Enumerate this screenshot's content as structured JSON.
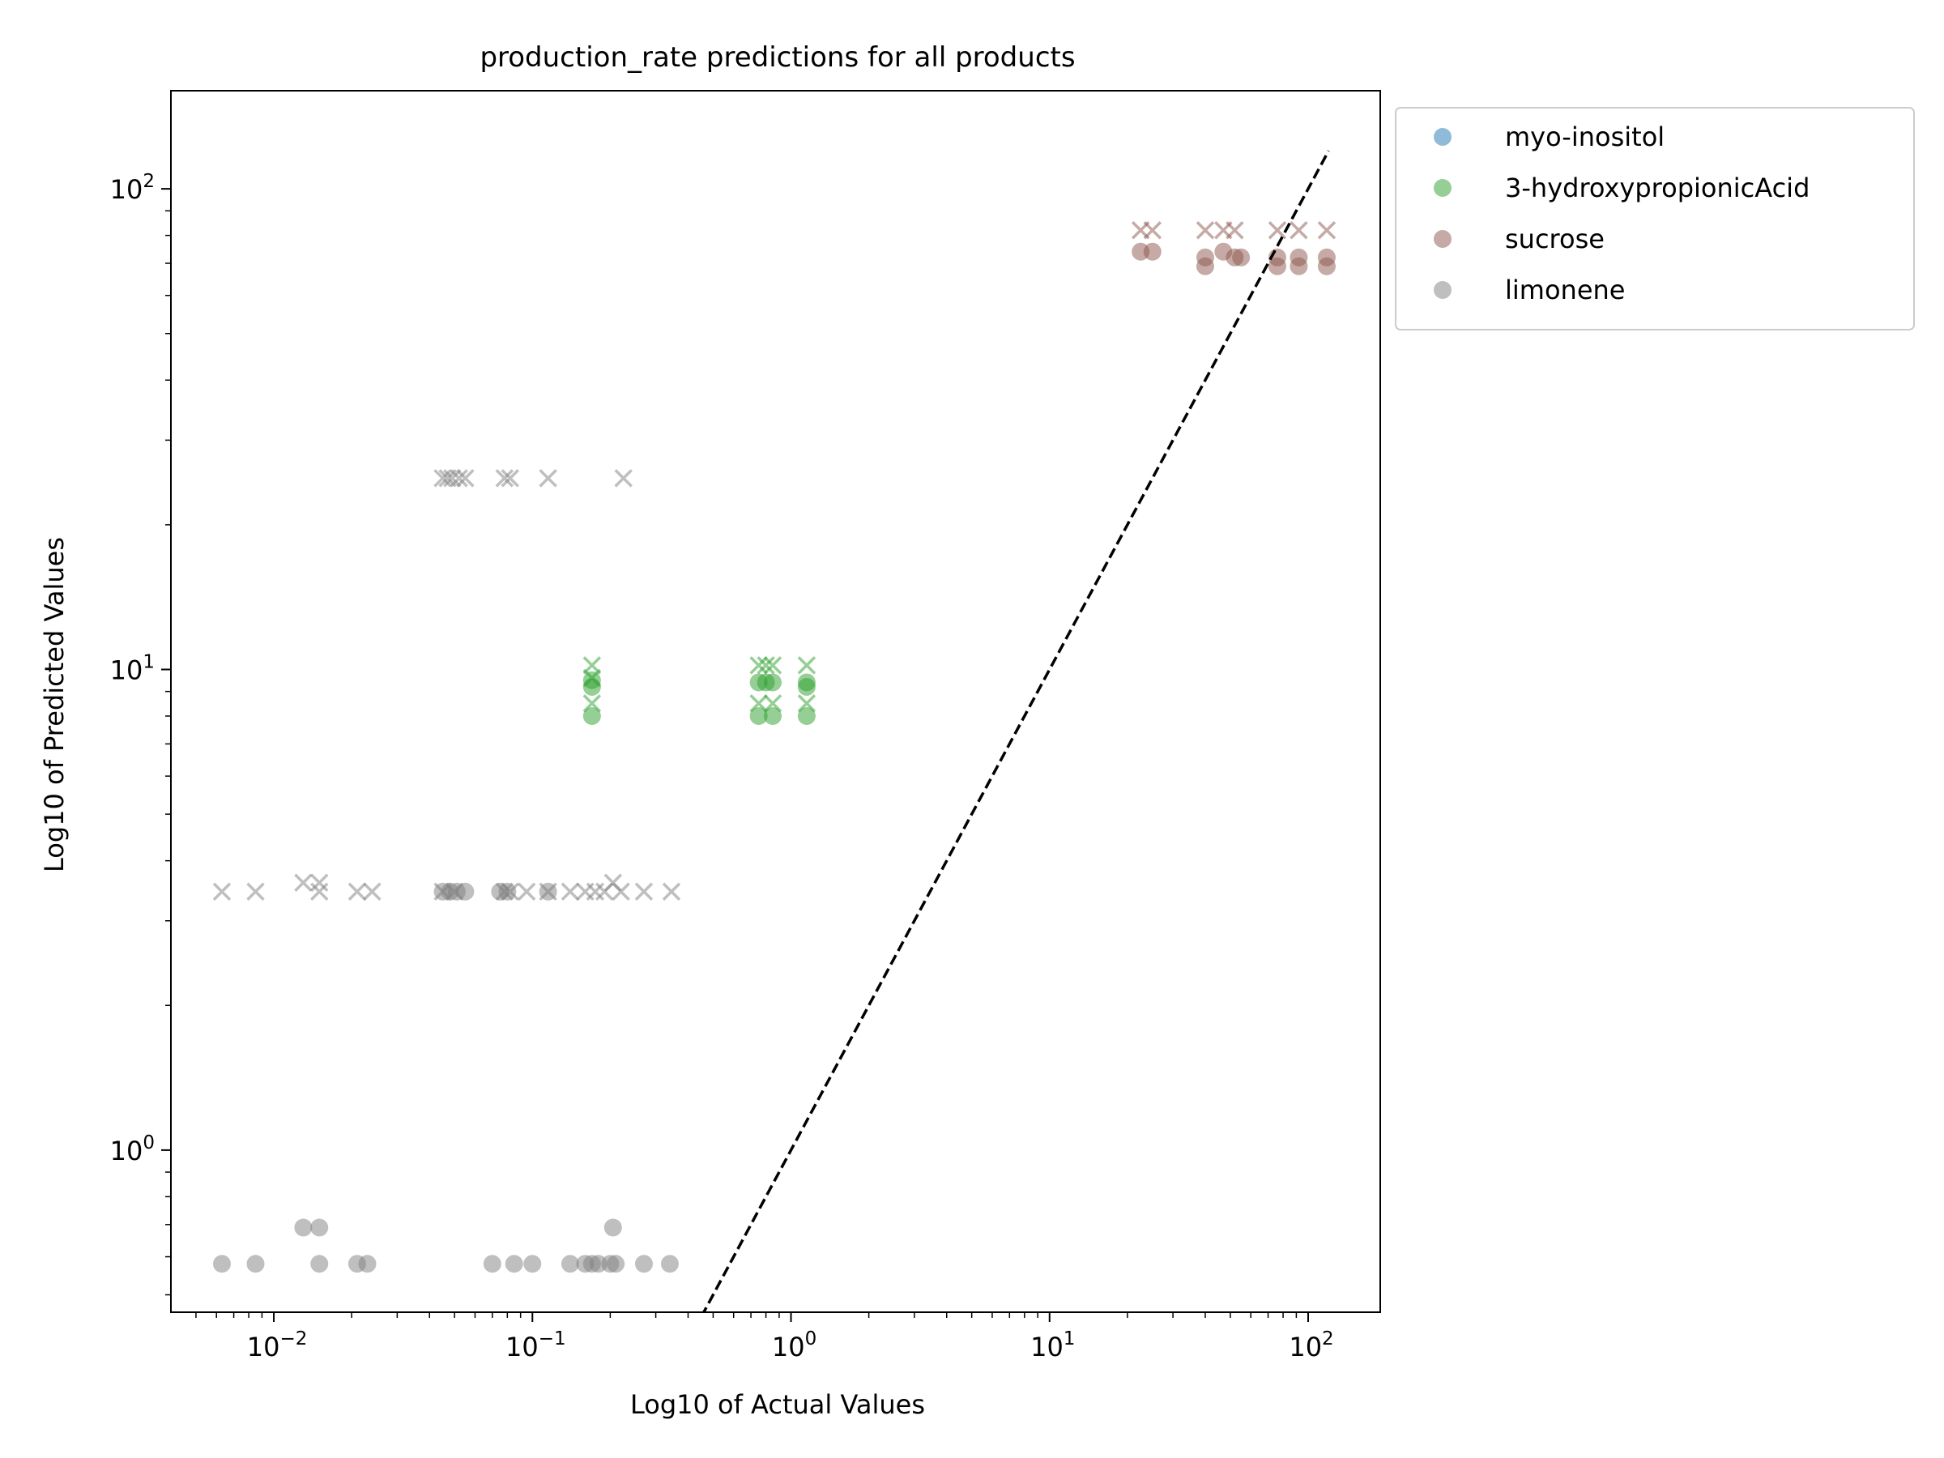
{
  "chart_data": {
    "type": "scatter",
    "title": "production_rate predictions for all products",
    "xlabel": "Log10 of Actual Values",
    "ylabel": "Log10 of Predicted Values",
    "xscale": "log",
    "yscale": "log",
    "xlim": [
      0.004,
      190
    ],
    "ylim": [
      0.46,
      160
    ],
    "grid": false,
    "legend_position": "outside-top-right",
    "x_ticks": [
      {
        "value": 0.01,
        "base": "10",
        "exp": "−2"
      },
      {
        "value": 0.1,
        "base": "10",
        "exp": "−1"
      },
      {
        "value": 1,
        "base": "10",
        "exp": "0"
      },
      {
        "value": 10,
        "base": "10",
        "exp": "1"
      },
      {
        "value": 100,
        "base": "10",
        "exp": "2"
      }
    ],
    "y_ticks": [
      {
        "value": 1,
        "base": "10",
        "exp": "0"
      },
      {
        "value": 10,
        "base": "10",
        "exp": "1"
      },
      {
        "value": 100,
        "base": "10",
        "exp": "2"
      }
    ],
    "reference_line": {
      "style": "dashed",
      "color": "#000000",
      "from": [
        0.45,
        0.45
      ],
      "to": [
        120,
        120
      ]
    },
    "series": [
      {
        "name": "myo-inositol",
        "color": "#1f77b4",
        "points": []
      },
      {
        "name": "3-hydroxypropionicAcid",
        "color": "#2ca02c",
        "points": [
          {
            "x": 0.17,
            "y": 10.2,
            "m": "x"
          },
          {
            "x": 0.17,
            "y": 9.6,
            "m": "x"
          },
          {
            "x": 0.17,
            "y": 8.5,
            "m": "x"
          },
          {
            "x": 0.17,
            "y": 9.5,
            "m": "o"
          },
          {
            "x": 0.17,
            "y": 9.2,
            "m": "o"
          },
          {
            "x": 0.17,
            "y": 8.0,
            "m": "o"
          },
          {
            "x": 0.75,
            "y": 10.2,
            "m": "x"
          },
          {
            "x": 0.8,
            "y": 10.2,
            "m": "x"
          },
          {
            "x": 0.85,
            "y": 10.2,
            "m": "x"
          },
          {
            "x": 0.75,
            "y": 8.5,
            "m": "x"
          },
          {
            "x": 0.85,
            "y": 8.5,
            "m": "x"
          },
          {
            "x": 0.75,
            "y": 9.4,
            "m": "o"
          },
          {
            "x": 0.8,
            "y": 9.4,
            "m": "o"
          },
          {
            "x": 0.85,
            "y": 9.4,
            "m": "o"
          },
          {
            "x": 0.75,
            "y": 8.0,
            "m": "o"
          },
          {
            "x": 0.85,
            "y": 8.0,
            "m": "o"
          },
          {
            "x": 1.15,
            "y": 10.2,
            "m": "x"
          },
          {
            "x": 1.15,
            "y": 8.5,
            "m": "x"
          },
          {
            "x": 1.15,
            "y": 9.4,
            "m": "o"
          },
          {
            "x": 1.15,
            "y": 9.2,
            "m": "o"
          },
          {
            "x": 1.15,
            "y": 8.0,
            "m": "o"
          }
        ]
      },
      {
        "name": "sucrose",
        "color": "#8c564b",
        "points": [
          {
            "x": 22.5,
            "y": 82,
            "m": "x"
          },
          {
            "x": 25,
            "y": 82,
            "m": "x"
          },
          {
            "x": 22.5,
            "y": 74,
            "m": "o"
          },
          {
            "x": 25,
            "y": 74,
            "m": "o"
          },
          {
            "x": 40,
            "y": 82,
            "m": "x"
          },
          {
            "x": 47,
            "y": 82,
            "m": "x"
          },
          {
            "x": 52,
            "y": 82,
            "m": "x"
          },
          {
            "x": 40,
            "y": 72,
            "m": "o"
          },
          {
            "x": 40,
            "y": 69,
            "m": "o"
          },
          {
            "x": 47,
            "y": 74,
            "m": "o"
          },
          {
            "x": 52,
            "y": 72,
            "m": "o"
          },
          {
            "x": 55,
            "y": 72,
            "m": "o"
          },
          {
            "x": 76,
            "y": 82,
            "m": "x"
          },
          {
            "x": 92,
            "y": 82,
            "m": "x"
          },
          {
            "x": 118,
            "y": 82,
            "m": "x"
          },
          {
            "x": 76,
            "y": 72,
            "m": "o"
          },
          {
            "x": 76,
            "y": 69,
            "m": "o"
          },
          {
            "x": 92,
            "y": 72,
            "m": "o"
          },
          {
            "x": 92,
            "y": 69,
            "m": "o"
          },
          {
            "x": 118,
            "y": 72,
            "m": "o"
          },
          {
            "x": 118,
            "y": 69,
            "m": "o"
          }
        ]
      },
      {
        "name": "limonene",
        "color": "#7f7f7f",
        "points": [
          {
            "x": 0.045,
            "y": 25,
            "m": "x"
          },
          {
            "x": 0.047,
            "y": 25,
            "m": "x"
          },
          {
            "x": 0.049,
            "y": 25,
            "m": "x"
          },
          {
            "x": 0.052,
            "y": 25,
            "m": "x"
          },
          {
            "x": 0.055,
            "y": 25,
            "m": "x"
          },
          {
            "x": 0.078,
            "y": 25,
            "m": "x"
          },
          {
            "x": 0.082,
            "y": 25,
            "m": "x"
          },
          {
            "x": 0.115,
            "y": 25,
            "m": "x"
          },
          {
            "x": 0.225,
            "y": 25,
            "m": "x"
          },
          {
            "x": 0.0063,
            "y": 3.45,
            "m": "x"
          },
          {
            "x": 0.0085,
            "y": 3.45,
            "m": "x"
          },
          {
            "x": 0.013,
            "y": 3.6,
            "m": "x"
          },
          {
            "x": 0.015,
            "y": 3.6,
            "m": "x"
          },
          {
            "x": 0.015,
            "y": 3.45,
            "m": "x"
          },
          {
            "x": 0.021,
            "y": 3.45,
            "m": "x"
          },
          {
            "x": 0.024,
            "y": 3.45,
            "m": "x"
          },
          {
            "x": 0.045,
            "y": 3.45,
            "m": "x"
          },
          {
            "x": 0.05,
            "y": 3.45,
            "m": "x"
          },
          {
            "x": 0.078,
            "y": 3.45,
            "m": "x"
          },
          {
            "x": 0.082,
            "y": 3.45,
            "m": "x"
          },
          {
            "x": 0.095,
            "y": 3.45,
            "m": "x"
          },
          {
            "x": 0.115,
            "y": 3.45,
            "m": "x"
          },
          {
            "x": 0.14,
            "y": 3.45,
            "m": "x"
          },
          {
            "x": 0.16,
            "y": 3.45,
            "m": "x"
          },
          {
            "x": 0.175,
            "y": 3.45,
            "m": "x"
          },
          {
            "x": 0.19,
            "y": 3.45,
            "m": "x"
          },
          {
            "x": 0.205,
            "y": 3.6,
            "m": "x"
          },
          {
            "x": 0.22,
            "y": 3.45,
            "m": "x"
          },
          {
            "x": 0.27,
            "y": 3.45,
            "m": "x"
          },
          {
            "x": 0.345,
            "y": 3.45,
            "m": "x"
          },
          {
            "x": 0.045,
            "y": 3.45,
            "m": "o"
          },
          {
            "x": 0.048,
            "y": 3.45,
            "m": "o"
          },
          {
            "x": 0.051,
            "y": 3.45,
            "m": "o"
          },
          {
            "x": 0.055,
            "y": 3.45,
            "m": "o"
          },
          {
            "x": 0.075,
            "y": 3.45,
            "m": "o"
          },
          {
            "x": 0.08,
            "y": 3.45,
            "m": "o"
          },
          {
            "x": 0.115,
            "y": 3.45,
            "m": "o"
          },
          {
            "x": 0.0063,
            "y": 0.58,
            "m": "o"
          },
          {
            "x": 0.0085,
            "y": 0.58,
            "m": "o"
          },
          {
            "x": 0.013,
            "y": 0.69,
            "m": "o"
          },
          {
            "x": 0.015,
            "y": 0.69,
            "m": "o"
          },
          {
            "x": 0.015,
            "y": 0.58,
            "m": "o"
          },
          {
            "x": 0.021,
            "y": 0.58,
            "m": "o"
          },
          {
            "x": 0.023,
            "y": 0.58,
            "m": "o"
          },
          {
            "x": 0.07,
            "y": 0.58,
            "m": "o"
          },
          {
            "x": 0.085,
            "y": 0.58,
            "m": "o"
          },
          {
            "x": 0.1,
            "y": 0.58,
            "m": "o"
          },
          {
            "x": 0.14,
            "y": 0.58,
            "m": "o"
          },
          {
            "x": 0.16,
            "y": 0.58,
            "m": "o"
          },
          {
            "x": 0.17,
            "y": 0.58,
            "m": "o"
          },
          {
            "x": 0.18,
            "y": 0.58,
            "m": "o"
          },
          {
            "x": 0.2,
            "y": 0.58,
            "m": "o"
          },
          {
            "x": 0.21,
            "y": 0.58,
            "m": "o"
          },
          {
            "x": 0.205,
            "y": 0.69,
            "m": "o"
          },
          {
            "x": 0.27,
            "y": 0.58,
            "m": "o"
          },
          {
            "x": 0.34,
            "y": 0.58,
            "m": "o"
          }
        ]
      }
    ]
  }
}
